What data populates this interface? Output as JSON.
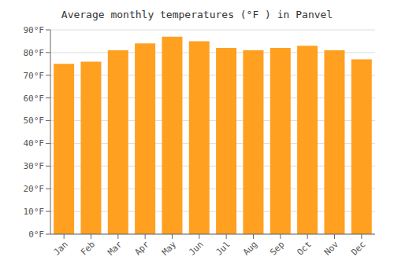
{
  "chart_data": {
    "type": "bar",
    "title": "Average monthly temperatures (°F ) in Panvel",
    "categories": [
      "Jan",
      "Feb",
      "Mar",
      "Apr",
      "May",
      "Jun",
      "Jul",
      "Aug",
      "Sep",
      "Oct",
      "Nov",
      "Dec"
    ],
    "values": [
      75,
      76,
      81,
      84,
      87,
      85,
      82,
      81,
      82,
      83,
      81,
      77
    ],
    "color": "#FFA020",
    "ylim": [
      0,
      90
    ],
    "yticks": [
      {
        "value": 0,
        "label": "0°F"
      },
      {
        "value": 10,
        "label": "10°F"
      },
      {
        "value": 20,
        "label": "20°F"
      },
      {
        "value": 30,
        "label": "30°F"
      },
      {
        "value": 40,
        "label": "40°F"
      },
      {
        "value": 50,
        "label": "50°F"
      },
      {
        "value": 60,
        "label": "60°F"
      },
      {
        "value": 70,
        "label": "70°F"
      },
      {
        "value": 80,
        "label": "80°F"
      },
      {
        "value": 90,
        "label": "90°F"
      }
    ],
    "grid": true
  }
}
